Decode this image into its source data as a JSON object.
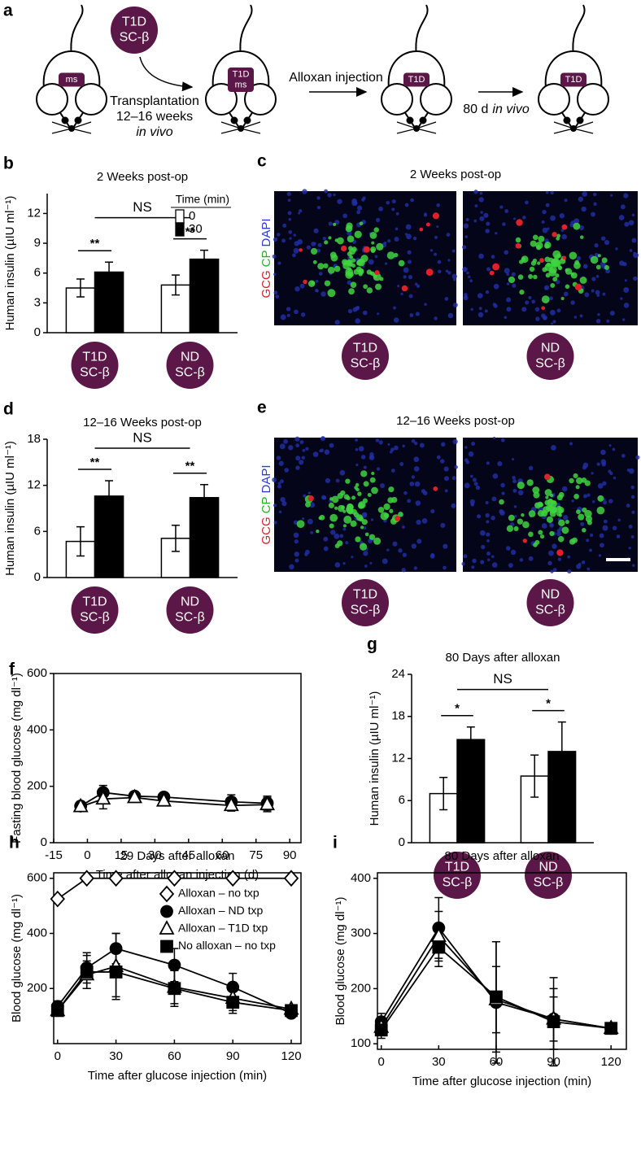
{
  "schematic": {
    "letter": "a",
    "donor": [
      "T1D",
      "SC-β"
    ],
    "mice": [
      [
        "ms"
      ],
      [
        "T1D",
        "ms"
      ],
      [
        "T1D"
      ],
      [
        "T1D"
      ]
    ],
    "steps": [
      [
        "Transplantation",
        "12–16 weeks",
        "in vivo"
      ],
      [
        "Alloxan injection"
      ],
      [
        "80 d",
        "in vivo"
      ]
    ]
  },
  "images": [
    {
      "letter": "c",
      "title": "2 Weeks post-op",
      "stain": [
        "GCG",
        "CP",
        "DAPI"
      ],
      "labels": [
        [
          "T1D",
          "SC-β"
        ],
        [
          "ND",
          "SC-β"
        ]
      ]
    },
    {
      "letter": "e",
      "title": "12–16 Weeks post-op",
      "stain": [
        "GCG",
        "CP",
        "DAPI"
      ],
      "labels": [
        [
          "T1D",
          "SC-β"
        ],
        [
          "ND",
          "SC-β"
        ]
      ]
    }
  ],
  "chart_data": [
    {
      "type": "bar",
      "letter": "b",
      "title": "2 Weeks post-op",
      "ylabel": "Human insulin (µIU ml⁻¹)",
      "frame": "axes",
      "categories": [
        [
          "T1D",
          "SC-β"
        ],
        [
          "ND",
          "SC-β"
        ]
      ],
      "legend_title": "Time (min)",
      "legend": "upper right",
      "series": [
        {
          "name": "0",
          "color": "#ffffff",
          "values": [
            4.5,
            4.8
          ],
          "errors": [
            0.9,
            1.0
          ]
        },
        {
          "name": "30",
          "color": "#000000",
          "values": [
            6.1,
            7.4
          ],
          "errors": [
            1.0,
            0.9
          ]
        }
      ],
      "annotations": [
        "**",
        "**",
        "NS"
      ],
      "ylim": [
        0,
        14
      ],
      "yticks": [
        0,
        3,
        6,
        9,
        12
      ]
    },
    {
      "type": "bar",
      "letter": "d",
      "title": "12–16 Weeks post-op",
      "ylabel": "Human insulin (µIU ml⁻¹)",
      "frame": "axes",
      "categories": [
        [
          "T1D",
          "SC-β"
        ],
        [
          "ND",
          "SC-β"
        ]
      ],
      "series": [
        {
          "color": "#ffffff",
          "values": [
            4.7,
            5.1
          ],
          "errors": [
            1.9,
            1.7
          ]
        },
        {
          "color": "#000000",
          "values": [
            10.6,
            10.4
          ],
          "errors": [
            2.0,
            1.7
          ]
        }
      ],
      "annotations": [
        "**",
        "**",
        "NS"
      ],
      "ylim": [
        0,
        18
      ],
      "yticks": [
        0,
        6,
        12,
        18
      ]
    },
    {
      "type": "line",
      "letter": "f",
      "ylabel": "Fasting blood glucose (mg dl⁻¹)",
      "xlabel": "Time after alloxan injection (d)",
      "frame": "box",
      "x": [
        -3,
        7,
        21,
        34,
        64,
        80
      ],
      "series": [
        {
          "color": "#000000",
          "marker": "circle",
          "filled": true,
          "values": [
            130,
            178,
            165,
            162,
            145,
            140
          ],
          "errors": [
            15,
            25,
            15,
            15,
            25,
            25
          ]
        },
        {
          "color": "#000000",
          "marker": "triangle",
          "filled": false,
          "values": [
            128,
            155,
            160,
            148,
            132,
            135
          ],
          "errors": [
            12,
            35,
            15,
            15,
            20,
            25
          ]
        }
      ],
      "xlim": [
        -15,
        95
      ],
      "xticks": [
        -15,
        0,
        15,
        30,
        45,
        60,
        75,
        90
      ],
      "ylim": [
        0,
        600
      ],
      "yticks": [
        0,
        200,
        400,
        600
      ]
    },
    {
      "type": "bar",
      "letter": "g",
      "title": "80 Days after alloxan",
      "ylabel": "Human insulin (µIU ml⁻¹)",
      "frame": "axes",
      "categories": [
        [
          "T1D",
          "SC-β"
        ],
        [
          "ND",
          "SC-β"
        ]
      ],
      "series": [
        {
          "color": "#ffffff",
          "values": [
            7.0,
            9.5
          ],
          "errors": [
            2.3,
            3.0
          ]
        },
        {
          "color": "#000000",
          "values": [
            14.7,
            13.0
          ],
          "errors": [
            1.8,
            4.2
          ]
        }
      ],
      "annotations": [
        "*",
        "*",
        "NS"
      ],
      "ylim": [
        0,
        24
      ],
      "yticks": [
        0,
        6,
        12,
        18,
        24
      ]
    },
    {
      "type": "line",
      "letter": "h",
      "title": "29 Days after alloxan",
      "ylabel": "Blood glucose (mg dl⁻¹)",
      "xlabel": "Time after glucose injection (min)",
      "frame": "box",
      "legend": "upper right",
      "x": [
        0,
        15,
        30,
        60,
        90,
        120
      ],
      "series": [
        {
          "name": "Alloxan – no txp",
          "color": "#000000",
          "marker": "diamond",
          "filled": false,
          "values": [
            525,
            600,
            600,
            600,
            600,
            600
          ]
        },
        {
          "name": "Alloxan – ND txp",
          "color": "#000000",
          "marker": "circle",
          "filled": true,
          "values": [
            135,
            275,
            345,
            285,
            205,
            110
          ],
          "errors": [
            20,
            55,
            55,
            60,
            50,
            15
          ]
        },
        {
          "name": "Alloxan – T1D txp",
          "color": "#000000",
          "marker": "triangle",
          "filled": false,
          "values": [
            120,
            250,
            280,
            205,
            165,
            125
          ],
          "errors": [
            15,
            50,
            120,
            60,
            45,
            15
          ]
        },
        {
          "name": "No alloxan – no txp",
          "color": "#000000",
          "marker": "square",
          "filled": true,
          "values": [
            120,
            260,
            260,
            200,
            150,
            120
          ],
          "errors": [
            15,
            60,
            90,
            65,
            40,
            15
          ]
        }
      ],
      "xlim": [
        -2,
        125
      ],
      "xticks": [
        0,
        30,
        60,
        90,
        120
      ],
      "ylim": [
        0,
        620
      ],
      "yticks": [
        200,
        400,
        600
      ]
    },
    {
      "type": "line",
      "letter": "i",
      "title": "80 Days after alloxan",
      "ylabel": "Blood glucose (mg dl⁻¹)",
      "xlabel": "Time after glucose injection (min)",
      "frame": "box",
      "x": [
        0,
        30,
        60,
        90,
        120
      ],
      "series": [
        {
          "color": "#000000",
          "marker": "circle",
          "filled": true,
          "values": [
            140,
            310,
            175,
            145,
            128
          ],
          "errors": [
            15,
            55,
            110,
            40,
            10
          ]
        },
        {
          "color": "#000000",
          "marker": "triangle",
          "filled": false,
          "values": [
            130,
            295,
            180,
            145,
            128
          ],
          "errors": [
            15,
            45,
            60,
            55,
            10
          ]
        },
        {
          "color": "#000000",
          "marker": "square",
          "filled": true,
          "values": [
            125,
            275,
            185,
            140,
            128
          ],
          "errors": [
            15,
            35,
            100,
            80,
            10
          ]
        }
      ],
      "xlim": [
        -2,
        128
      ],
      "xticks": [
        0,
        30,
        60,
        90,
        120
      ],
      "ylim": [
        90,
        410
      ],
      "yticks": [
        100,
        200,
        300,
        400
      ]
    }
  ]
}
